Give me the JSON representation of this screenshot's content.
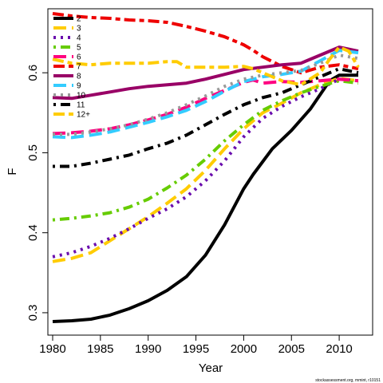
{
  "chart_data": {
    "type": "line",
    "title": "",
    "xlabel": "Year",
    "ylabel": "F",
    "xlim": [
      1979.5,
      2013.5
    ],
    "ylim": [
      0.272,
      0.68
    ],
    "xticks": [
      1980,
      1985,
      1990,
      1995,
      2000,
      2005,
      2010
    ],
    "yticks": [
      0.3,
      0.4,
      0.5,
      0.6
    ],
    "ytick_labels": [
      "0.3",
      "0.4",
      "0.5",
      "0.6"
    ],
    "grid": false,
    "legend_position": "top-left",
    "credit": "stockassessment.org, mmint, r10151",
    "series": [
      {
        "name": "2",
        "color": "#000000",
        "dash": "solid",
        "x": [
          1980,
          1982,
          1984,
          1986,
          1988,
          1990,
          1992,
          1994,
          1996,
          1998,
          2000,
          2001,
          2003,
          2005,
          2007,
          2009,
          2010,
          2012
        ],
        "y": [
          0.289,
          0.29,
          0.292,
          0.297,
          0.305,
          0.315,
          0.328,
          0.345,
          0.372,
          0.41,
          0.455,
          0.473,
          0.505,
          0.528,
          0.555,
          0.59,
          0.597,
          0.597
        ]
      },
      {
        "name": "3",
        "color": "#FFCC00",
        "dash": "longdash",
        "x": [
          1980,
          1982,
          1984,
          1986,
          1988,
          1990,
          1992,
          1994,
          1996,
          1998,
          2000,
          2002,
          2004,
          2006,
          2008,
          2010,
          2012
        ],
        "y": [
          0.364,
          0.368,
          0.375,
          0.39,
          0.405,
          0.42,
          0.437,
          0.455,
          0.478,
          0.505,
          0.53,
          0.55,
          0.562,
          0.575,
          0.585,
          0.593,
          0.59
        ]
      },
      {
        "name": "4",
        "color": "#6A0DAD",
        "dash": "dotted",
        "x": [
          1980,
          1982,
          1984,
          1986,
          1988,
          1990,
          1992,
          1994,
          1996,
          1998,
          2000,
          2002,
          2004,
          2006,
          2008,
          2010,
          2012
        ],
        "y": [
          0.37,
          0.375,
          0.383,
          0.393,
          0.405,
          0.418,
          0.43,
          0.445,
          0.465,
          0.49,
          0.52,
          0.543,
          0.558,
          0.57,
          0.58,
          0.592,
          0.59
        ]
      },
      {
        "name": "5",
        "color": "#66CC00",
        "dash": "dotdash",
        "x": [
          1980,
          1982,
          1984,
          1986,
          1988,
          1990,
          1992,
          1994,
          1996,
          1998,
          2000,
          2002,
          2004,
          2006,
          2008,
          2010,
          2012
        ],
        "y": [
          0.416,
          0.418,
          0.421,
          0.425,
          0.432,
          0.442,
          0.456,
          0.472,
          0.492,
          0.515,
          0.535,
          0.553,
          0.565,
          0.575,
          0.583,
          0.59,
          0.587
        ]
      },
      {
        "name": "6",
        "color": "#FF0080",
        "dash": "longdash",
        "x": [
          1980,
          1982,
          1984,
          1986,
          1988,
          1990,
          1992,
          1994,
          1996,
          1998,
          2000,
          2001,
          2002,
          2004,
          2006,
          2008,
          2010,
          2012
        ],
        "y": [
          0.524,
          0.525,
          0.527,
          0.53,
          0.535,
          0.541,
          0.548,
          0.557,
          0.568,
          0.578,
          0.588,
          0.591,
          0.587,
          0.589,
          0.588,
          0.59,
          0.592,
          0.59
        ]
      },
      {
        "name": "7",
        "color": "#EE0000",
        "dash": "twodash",
        "x": [
          1980,
          1982,
          1984,
          1986,
          1988,
          1990,
          1992,
          1994,
          1996,
          1998,
          2000,
          2001,
          2002,
          2004,
          2006,
          2008,
          2010,
          2012
        ],
        "y": [
          0.674,
          0.671,
          0.669,
          0.668,
          0.666,
          0.665,
          0.663,
          0.658,
          0.652,
          0.645,
          0.635,
          0.628,
          0.62,
          0.608,
          0.6,
          0.607,
          0.61,
          0.605
        ]
      },
      {
        "name": "8",
        "color": "#990066",
        "dash": "solid",
        "x": [
          1980,
          1982,
          1984,
          1986,
          1988,
          1990,
          1992,
          1994,
          1996,
          1998,
          2000,
          2002,
          2004,
          2006,
          2008,
          2010,
          2012
        ],
        "y": [
          0.569,
          0.568,
          0.572,
          0.576,
          0.58,
          0.583,
          0.585,
          0.587,
          0.592,
          0.598,
          0.604,
          0.607,
          0.61,
          0.612,
          0.622,
          0.632,
          0.627
        ]
      },
      {
        "name": "9",
        "color": "#33CCFF",
        "dash": "longdash",
        "x": [
          1980,
          1982,
          1984,
          1986,
          1988,
          1990,
          1992,
          1994,
          1996,
          1998,
          2000,
          2002,
          2004,
          2006,
          2008,
          2010,
          2012
        ],
        "y": [
          0.52,
          0.519,
          0.522,
          0.526,
          0.532,
          0.538,
          0.545,
          0.553,
          0.564,
          0.577,
          0.589,
          0.595,
          0.598,
          0.602,
          0.615,
          0.628,
          0.625
        ]
      },
      {
        "name": "10",
        "color": "#999999",
        "dash": "dotted",
        "x": [
          1980,
          1982,
          1984,
          1986,
          1988,
          1990,
          1992,
          1994,
          1996,
          1998,
          2000,
          2002,
          2004,
          2006,
          2008,
          2010,
          2012
        ],
        "y": [
          0.523,
          0.523,
          0.526,
          0.53,
          0.535,
          0.542,
          0.55,
          0.56,
          0.571,
          0.583,
          0.592,
          0.597,
          0.6,
          0.603,
          0.612,
          0.622,
          0.618
        ]
      },
      {
        "name": "11",
        "color": "#000000",
        "dash": "dotdash",
        "x": [
          1980,
          1982,
          1984,
          1986,
          1988,
          1990,
          1992,
          1994,
          1996,
          1998,
          2000,
          2002,
          2004,
          2006,
          2008,
          2010,
          2012
        ],
        "y": [
          0.483,
          0.483,
          0.487,
          0.492,
          0.497,
          0.505,
          0.512,
          0.522,
          0.535,
          0.548,
          0.56,
          0.569,
          0.575,
          0.585,
          0.595,
          0.605,
          0.6
        ]
      },
      {
        "name": "12+",
        "color": "#FFCC00",
        "dash": "twodash",
        "x": [
          1980,
          1982,
          1984,
          1986,
          1988,
          1990,
          1992,
          1993,
          1994,
          1996,
          1998,
          2000,
          2001,
          2002,
          2003,
          2004,
          2006,
          2008,
          2009,
          2010,
          2011,
          2012
        ],
        "y": [
          0.617,
          0.612,
          0.61,
          0.612,
          0.612,
          0.612,
          0.614,
          0.614,
          0.607,
          0.607,
          0.607,
          0.608,
          0.605,
          0.6,
          0.595,
          0.59,
          0.585,
          0.6,
          0.617,
          0.632,
          0.627,
          0.607
        ]
      }
    ]
  }
}
